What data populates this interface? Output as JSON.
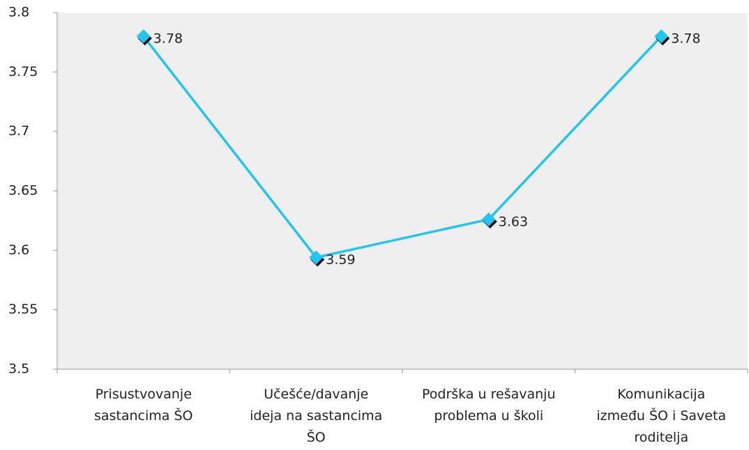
{
  "chart_data": {
    "type": "line",
    "categories": [
      "Prisustvovanje\nsastancima ŠO",
      "Učešće/davanje\nideja na sastancima\nŠO",
      "Podrška u rešavanju\nproblema u školi",
      "Komunikacija\nizmeđu ŠO i Saveta\nroditelja"
    ],
    "values": [
      3.78,
      3.594,
      3.626,
      3.78
    ],
    "value_labels": [
      "3.78",
      "3.59",
      "3.63",
      "3.78"
    ],
    "color": "#22c4f0",
    "ylim": [
      3.5,
      3.8
    ],
    "yticks": [
      3.5,
      3.55,
      3.6,
      3.65,
      3.7,
      3.75,
      3.8
    ]
  }
}
